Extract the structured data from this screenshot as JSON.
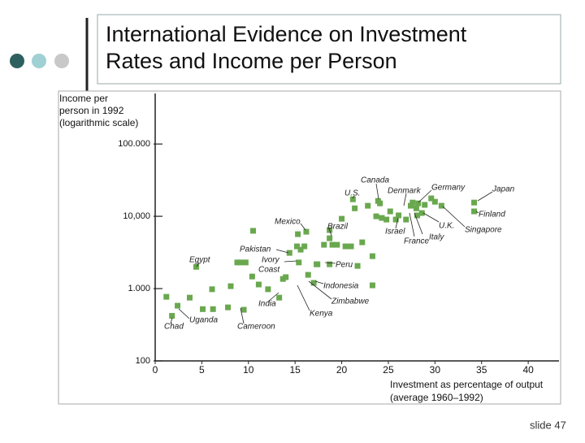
{
  "slide": {
    "title": [
      "International Evidence on Investment",
      "Rates and Income per Person"
    ],
    "number": "slide 47"
  },
  "chart_data": {
    "type": "scatter",
    "ylabel": [
      "Income per",
      "person in 1992",
      "(logarithmic scale)"
    ],
    "xlabel": [
      "Investment as percentage of output",
      "(average 1960–1992)"
    ],
    "log_y": true,
    "color": "#6aa84f",
    "xlim": [
      0,
      43.3
    ],
    "xticks": [
      0,
      5,
      10,
      15,
      20,
      25,
      30,
      35,
      40
    ],
    "ylim": [
      100,
      500000
    ],
    "yticks": [
      100,
      {
        "value": 1000,
        "label": "1.000"
      },
      {
        "value": 10000,
        "label": "10,000"
      },
      {
        "value": 100000,
        "label": "100.000"
      }
    ],
    "x": [
      1.2,
      1.8,
      2.4,
      3.7,
      4.4,
      5.1,
      6.1,
      6.2,
      7.8,
      8.1,
      8.8,
      9.2,
      9.7,
      10.4,
      9.5,
      10.5,
      11.1,
      12.1,
      13.3,
      13.7,
      14.0,
      14.4,
      15.2,
      15.3,
      15.4,
      15.6,
      16.0,
      16.2,
      16.4,
      17.0,
      17.3,
      17.4,
      18.1,
      18.7,
      18.7,
      18.7,
      19.0,
      19.5,
      20.0,
      20.4,
      21.0,
      21.2,
      21.4,
      21.7,
      22.2,
      23.3,
      22.8,
      23.3,
      23.9,
      23.7,
      24.1,
      24.3,
      24.8,
      25.2,
      25.8,
      26.1,
      26.9,
      27.4,
      27.6,
      28.0,
      28.2,
      28.1,
      28.6,
      28.9,
      29.6,
      30.0,
      30.7,
      34.2,
      34.2
    ],
    "values": [
      770,
      420,
      580,
      750,
      2000,
      520,
      980,
      520,
      550,
      1080,
      2300,
      2300,
      2300,
      1470,
      510,
      6300,
      1140,
      980,
      750,
      1360,
      1440,
      3120,
      3840,
      5660,
      2300,
      3460,
      3840,
      6120,
      1550,
      1200,
      2170,
      2170,
      4040,
      4970,
      6440,
      2170,
      4040,
      4040,
      9250,
      3840,
      3840,
      17200,
      12900,
      2060,
      4370,
      1110,
      14000,
      2810,
      16300,
      10000,
      15100,
      9500,
      9020,
      11700,
      9020,
      10300,
      9020,
      14000,
      15500,
      12900,
      15100,
      10300,
      11100,
      14400,
      17700,
      15900,
      14000,
      15500,
      11700
    ],
    "annotations": [
      "Canada",
      "U.S.",
      "Denmark",
      "Germany",
      "Japan",
      "Finland",
      "Mexico",
      "Brazil",
      "U.K.",
      "Singapore",
      "Israel",
      "Italy",
      "France",
      "Pakistan",
      "Ivory",
      "Coast",
      "Egypt",
      "Peru",
      "Indonesia",
      "India",
      "Zimbabwe",
      "Kenya",
      "Chad",
      "Uganda",
      "Cameroon"
    ]
  }
}
